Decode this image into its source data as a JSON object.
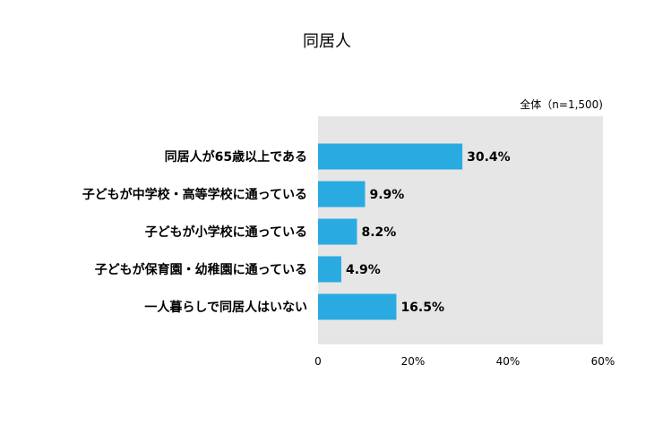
{
  "chart_data": {
    "type": "bar",
    "orientation": "horizontal",
    "title": "同居人",
    "sample_note": "全体（n=1,500)",
    "categories": [
      "同居人が65歳以上である",
      "子どもが中学校・高等学校に通っている",
      "子どもが小学校に通っている",
      "子どもが保育園・幼稚園に通っている",
      "一人暮らしで同居人はいない"
    ],
    "values": [
      30.4,
      9.9,
      8.2,
      4.9,
      16.5
    ],
    "value_labels": [
      "30.4%",
      "9.9%",
      "8.2%",
      "4.9%",
      "16.5%"
    ],
    "xlim": [
      0,
      60
    ],
    "x_ticks": [
      0,
      20,
      40,
      60
    ],
    "x_tick_labels": [
      "0",
      "20%",
      "40%",
      "60%"
    ],
    "xlabel": "",
    "ylabel": "",
    "grid": false,
    "colors": {
      "bar": "#29abe2",
      "plot_background": "#e6e6e6",
      "text": "#111111"
    }
  }
}
